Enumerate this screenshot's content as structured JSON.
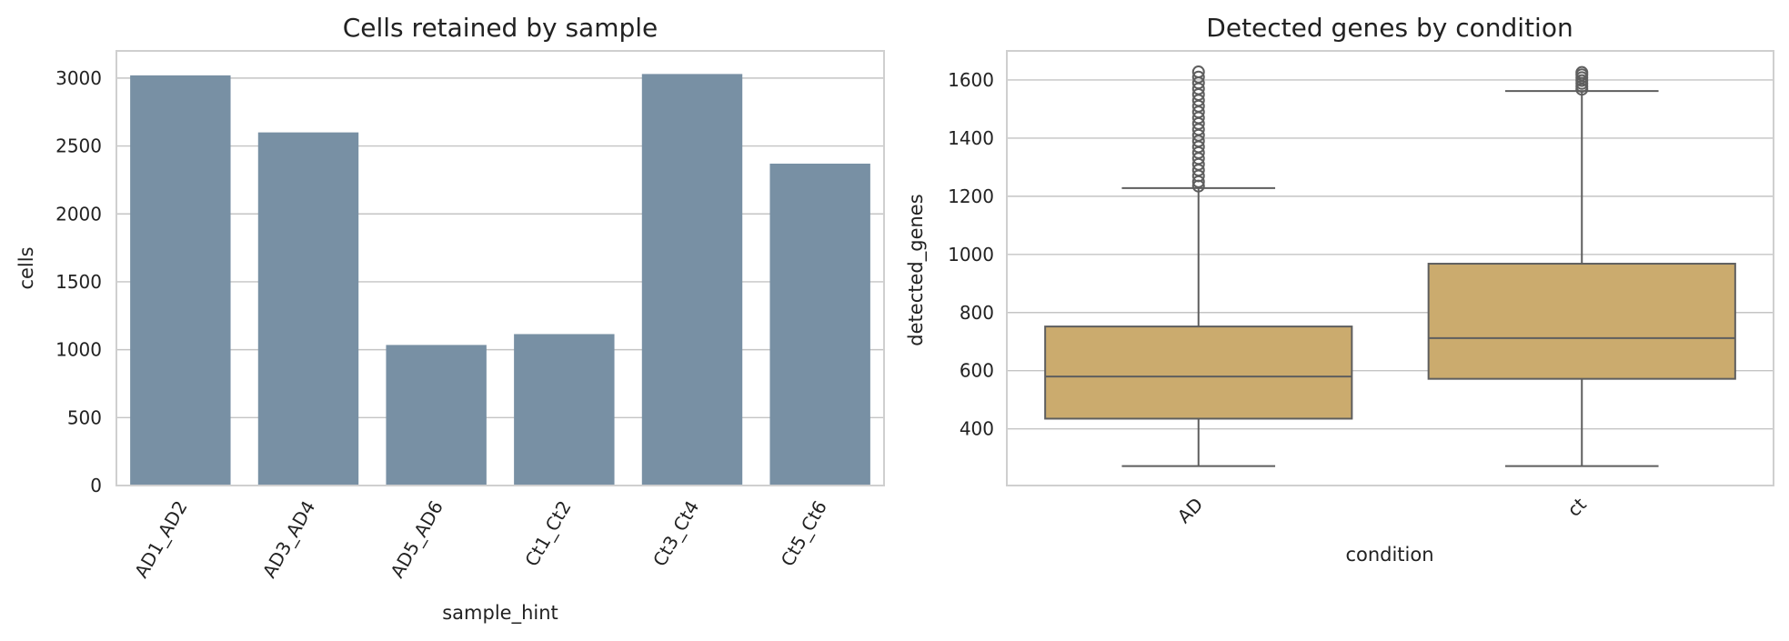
{
  "chart_data": [
    {
      "type": "bar",
      "title": "Cells retained by sample",
      "xlabel": "sample_hint",
      "ylabel": "cells",
      "categories": [
        "AD1_AD2",
        "AD3_AD4",
        "AD5_AD6",
        "Ct1_Ct2",
        "Ct3_Ct4",
        "Ct5_Ct6"
      ],
      "values": [
        3020,
        2600,
        1035,
        1115,
        3030,
        2370
      ],
      "ylim": [
        0,
        3200
      ],
      "yticks": [
        0,
        500,
        1000,
        1500,
        2000,
        2500,
        3000
      ],
      "grid": "horizontal",
      "bar_color": "#7890a4"
    },
    {
      "type": "box",
      "title": "Detected genes by condition",
      "xlabel": "condition",
      "ylabel": "detected_genes",
      "categories": [
        "AD",
        "ct"
      ],
      "boxes": [
        {
          "category": "AD",
          "whisker_low": 272,
          "q1": 435,
          "median": 580,
          "q3": 752,
          "whisker_high": 1228,
          "outliers": [
            1235,
            1250,
            1270,
            1290,
            1310,
            1330,
            1350,
            1370,
            1390,
            1410,
            1430,
            1450,
            1470,
            1490,
            1510,
            1530,
            1550,
            1570,
            1590,
            1610,
            1628
          ]
        },
        {
          "category": "ct",
          "whisker_low": 272,
          "q1": 572,
          "median": 712,
          "q3": 968,
          "whisker_high": 1562,
          "outliers": [
            1568,
            1578,
            1588,
            1598,
            1608,
            1618,
            1626
          ]
        }
      ],
      "ylim": [
        205,
        1700
      ],
      "yticks": [
        400,
        600,
        800,
        1000,
        1200,
        1400,
        1600
      ],
      "grid": "horizontal",
      "box_color": "#cbab6e",
      "line_color": "#5e5e5e"
    }
  ]
}
